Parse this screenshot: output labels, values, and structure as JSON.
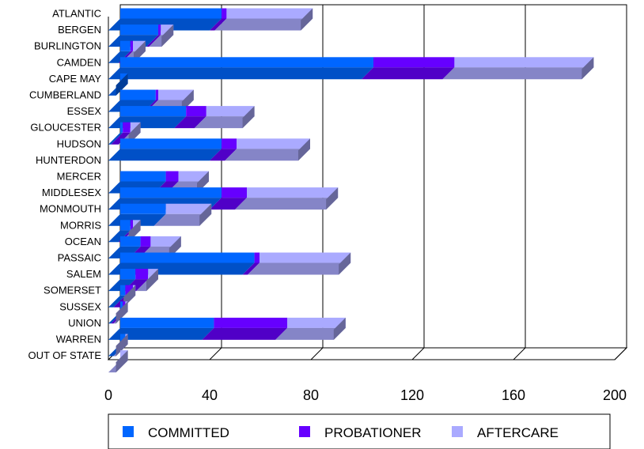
{
  "chart_data": {
    "type": "bar",
    "orientation": "horizontal",
    "stacked": true,
    "three_d": true,
    "categories": [
      "ATLANTIC",
      "BERGEN",
      "BURLINGTON",
      "CAMDEN",
      "CAPE MAY",
      "CUMBERLAND",
      "ESSEX",
      "GLOUCESTER",
      "HUDSON",
      "HUNTERDON",
      "MERCER",
      "MIDDLESEX",
      "MONMOUTH",
      "MORRIS",
      "OCEAN",
      "PASSAIC",
      "SALEM",
      "SOMERSET",
      "SUSSEX",
      "UNION",
      "WARREN",
      "OUT OF STATE"
    ],
    "series": [
      {
        "name": "COMMITTED",
        "color": "#0066ff",
        "values": [
          40,
          15,
          4,
          100,
          3,
          14,
          26,
          1,
          40,
          0,
          18,
          40,
          18,
          4,
          8,
          53,
          6,
          2,
          1,
          37,
          2,
          0
        ]
      },
      {
        "name": "PROBATIONER",
        "color": "#6600ff",
        "values": [
          2,
          1,
          1,
          32,
          0,
          1,
          8,
          3,
          6,
          0,
          5,
          10,
          0,
          1,
          4,
          2,
          5,
          3,
          1,
          29,
          0,
          0
        ]
      },
      {
        "name": "AFTERCARE",
        "color": "#aaaaff",
        "values": [
          34,
          5,
          5,
          55,
          0,
          14,
          19,
          4,
          29,
          0,
          12,
          36,
          18,
          3,
          12,
          36,
          4,
          1,
          1,
          23,
          1,
          3
        ]
      }
    ],
    "xlim": [
      0,
      200
    ],
    "xticks": [
      "0",
      "40",
      "80",
      "120",
      "160",
      "200"
    ],
    "grid": true,
    "legend_position": "bottom"
  }
}
